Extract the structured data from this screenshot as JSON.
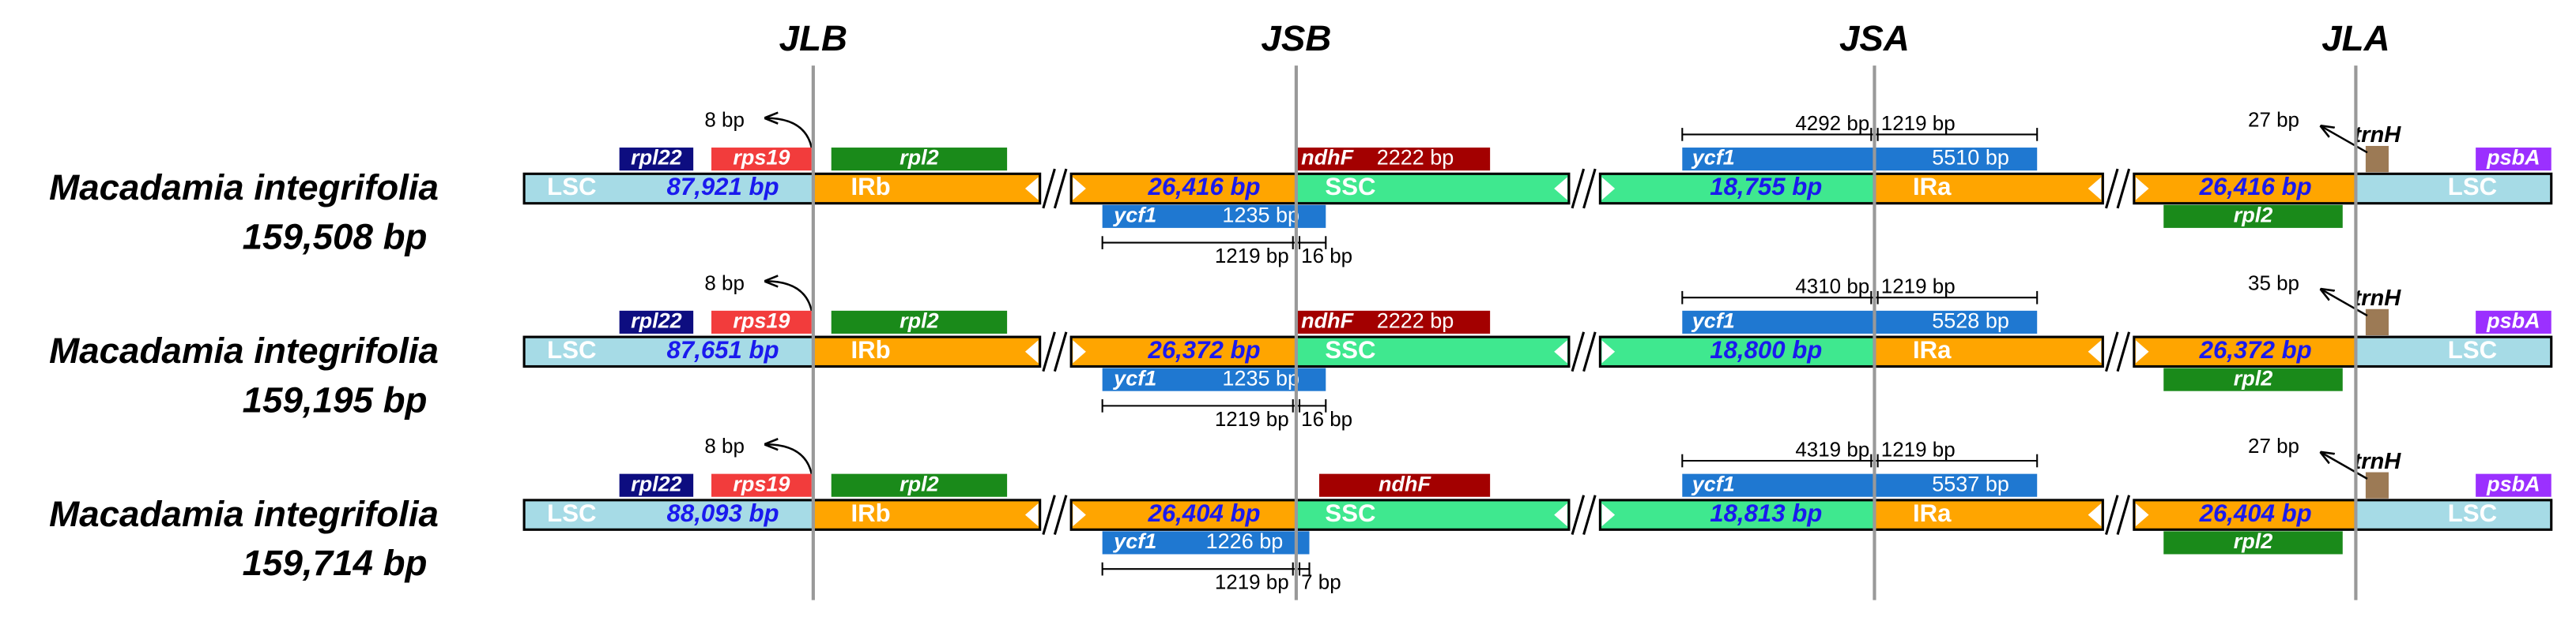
{
  "junctions": [
    "JLB",
    "JSB",
    "JSA",
    "JLA"
  ],
  "regions": {
    "lsc": "LSC",
    "irb": "IRb",
    "ssc": "SSC",
    "ira": "IRa"
  },
  "genes": {
    "rpl22": "rpl22",
    "rps19": "rps19",
    "rpl2": "rpl2",
    "ndhF": "ndhF",
    "ycf1": "ycf1",
    "trnH": "trnH",
    "psbA": "psbA"
  },
  "rows": [
    {
      "species": "Macadamia integrifolia",
      "size": "159,508 bp",
      "lsc": "87,921 bp",
      "ir": "26,416 bp",
      "ssc": "18,755 bp",
      "rps19_gap": "8 bp",
      "ycf1_short": "1235 bp",
      "ycf1_short_in_ir": "1219 bp",
      "ycf1_short_in_ssc": "16 bp",
      "ndhF": "2222 bp",
      "ycf1_long": "5510 bp",
      "ycf1_long_in_ssc": "4292 bp",
      "ycf1_long_in_ir": "1219 bp",
      "trnH_gap": "27 bp"
    },
    {
      "species": "Macadamia integrifolia",
      "size": "159,195 bp",
      "lsc": "87,651 bp",
      "ir": "26,372 bp",
      "ssc": "18,800 bp",
      "rps19_gap": "8 bp",
      "ycf1_short": "1235 bp",
      "ycf1_short_in_ir": "1219 bp",
      "ycf1_short_in_ssc": "16 bp",
      "ndhF": "2222 bp",
      "ycf1_long": "5528 bp",
      "ycf1_long_in_ssc": "4310 bp",
      "ycf1_long_in_ir": "1219 bp",
      "trnH_gap": "35 bp"
    },
    {
      "species": "Macadamia integrifolia",
      "size": "159,714 bp",
      "lsc": "88,093 bp",
      "ir": "26,404 bp",
      "ssc": "18,813 bp",
      "rps19_gap": "8 bp",
      "ycf1_short": "1226 bp",
      "ycf1_short_in_ir": "1219 bp",
      "ycf1_short_in_ssc": "7 bp",
      "ycf1_long": "5537 bp",
      "ycf1_long_in_ssc": "4319 bp",
      "ycf1_long_in_ir": "1219 bp",
      "trnH_gap": "27 bp"
    }
  ]
}
